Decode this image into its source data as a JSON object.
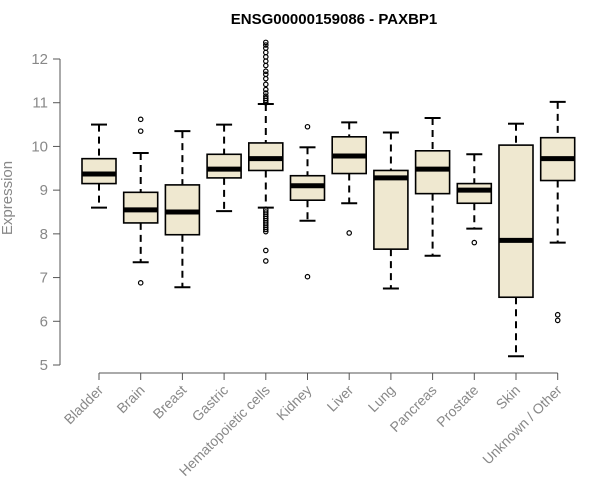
{
  "chart_data": {
    "type": "box",
    "title": "ENSG00000159086 - PAXBP1",
    "ylabel": "Expression",
    "xlabel": "",
    "ylim": [
      5,
      12.4
    ],
    "yticks": [
      5,
      6,
      7,
      8,
      9,
      10,
      11,
      12
    ],
    "ytick_labels": [
      "5",
      "6",
      "7",
      "8",
      "9",
      "10",
      "11",
      "12"
    ],
    "box_color": "#efe8d0",
    "categories": [
      "Bladder",
      "Brain",
      "Breast",
      "Gastric",
      "Hematopoietic cells",
      "Kidney",
      "Liver",
      "Lung",
      "Pancreas",
      "Prostate",
      "Skin",
      "Unknown / Other"
    ],
    "boxes": [
      {
        "min": 8.6,
        "q1": 9.15,
        "median": 9.37,
        "q3": 9.72,
        "max": 10.5,
        "outliers": []
      },
      {
        "min": 7.35,
        "q1": 8.25,
        "median": 8.55,
        "q3": 8.95,
        "max": 9.85,
        "outliers": [
          6.88,
          10.35,
          10.62
        ]
      },
      {
        "min": 6.78,
        "q1": 7.98,
        "median": 8.5,
        "q3": 9.12,
        "max": 10.35,
        "outliers": []
      },
      {
        "min": 8.52,
        "q1": 9.28,
        "median": 9.48,
        "q3": 9.82,
        "max": 10.5,
        "outliers": []
      },
      {
        "min": 8.6,
        "q1": 9.45,
        "median": 9.72,
        "q3": 10.08,
        "max": 10.97,
        "outliers": [
          7.38,
          7.62,
          8.05,
          8.1,
          8.15,
          8.2,
          8.25,
          8.3,
          8.35,
          8.4,
          8.45,
          8.5,
          8.55,
          11.0,
          11.05,
          11.1,
          11.15,
          11.22,
          11.3,
          11.42,
          11.55,
          11.65,
          11.72,
          11.85,
          11.95,
          12.05,
          12.15,
          12.25,
          12.32,
          12.38
        ]
      },
      {
        "min": 8.3,
        "q1": 8.77,
        "median": 9.1,
        "q3": 9.33,
        "max": 9.98,
        "outliers": [
          7.02,
          10.45
        ]
      },
      {
        "min": 8.7,
        "q1": 9.38,
        "median": 9.78,
        "q3": 10.22,
        "max": 10.55,
        "outliers": [
          8.02
        ]
      },
      {
        "min": 6.75,
        "q1": 7.65,
        "median": 9.28,
        "q3": 9.45,
        "max": 10.32,
        "outliers": []
      },
      {
        "min": 7.5,
        "q1": 8.92,
        "median": 9.48,
        "q3": 9.9,
        "max": 10.65,
        "outliers": []
      },
      {
        "min": 8.12,
        "q1": 8.7,
        "median": 9.0,
        "q3": 9.15,
        "max": 9.82,
        "outliers": [
          7.8
        ]
      },
      {
        "min": 5.2,
        "q1": 6.55,
        "median": 7.85,
        "q3": 10.03,
        "max": 10.52,
        "outliers": []
      },
      {
        "min": 7.8,
        "q1": 9.22,
        "median": 9.72,
        "q3": 10.2,
        "max": 11.02,
        "outliers": [
          6.02,
          6.15
        ]
      }
    ]
  }
}
